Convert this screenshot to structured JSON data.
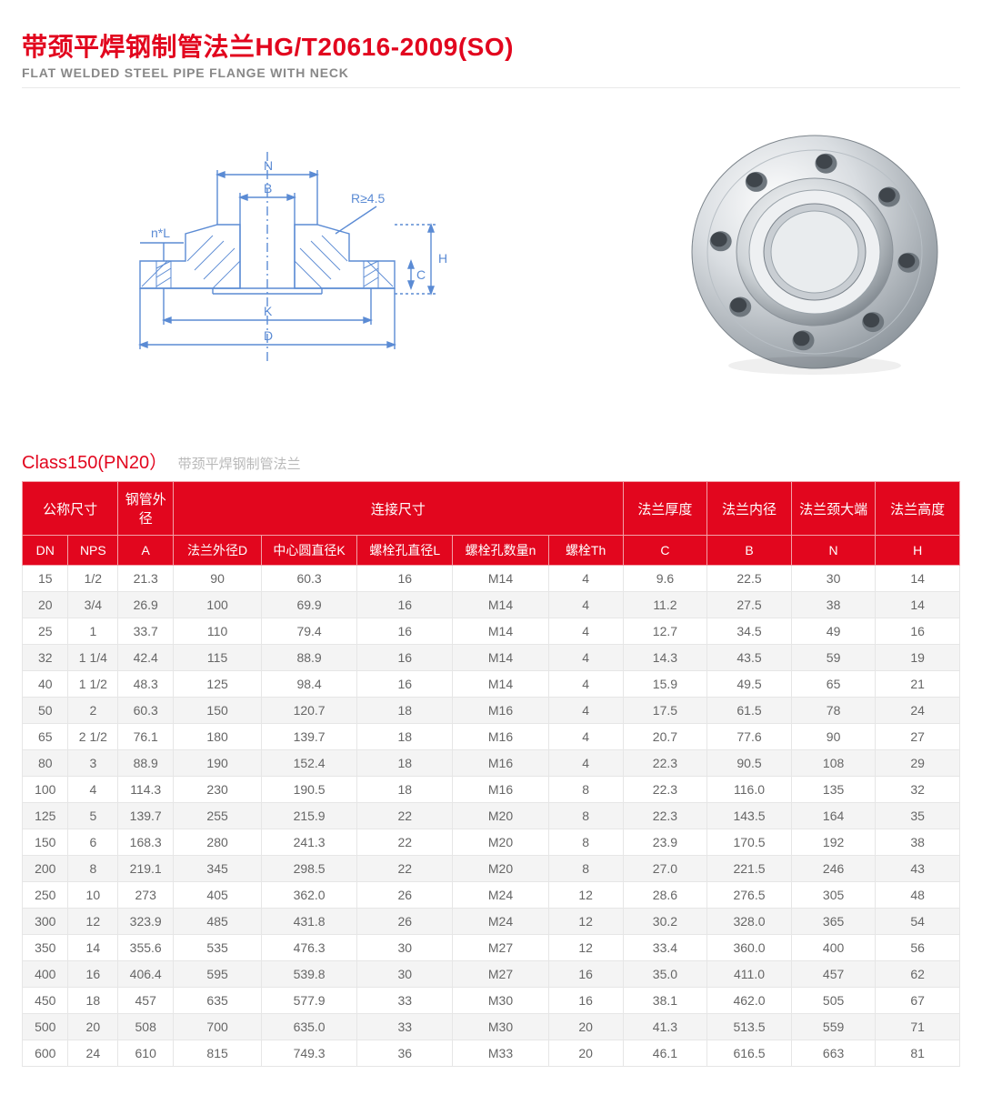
{
  "header": {
    "title_cn": "带颈平焊钢制管法兰HG/T20616-2009(SO)",
    "title_en": "FLAT WELDED STEEL PIPE FLANGE WITH NECK",
    "title_color": "#e2061e",
    "subtitle_color": "#888888"
  },
  "diagram": {
    "labels": {
      "N": "N",
      "B": "B",
      "R": "R≥4.5",
      "nL": "n*L",
      "H": "H",
      "C": "C",
      "K": "K",
      "D": "D"
    },
    "stroke_color": "#5b8bd4",
    "hatch_color": "#5b8bd4",
    "text_color": "#5b8bd4"
  },
  "photo": {
    "description": "metallic 8-bolt slip-on flange",
    "metal_light": "#f5f6f7",
    "metal_mid": "#cfd4d8",
    "metal_dark": "#9aa3aa",
    "bolt_count": 8
  },
  "section": {
    "title": "Class150(PN20）",
    "subtitle": "带颈平焊钢制管法兰"
  },
  "table": {
    "header_bg": "#e2061e",
    "header_fg": "#ffffff",
    "border_color": "#e6e6e6",
    "zebra_bg": "#f4f4f4",
    "groups": {
      "nominal": "公称尺寸",
      "pipe_od": "钢管外径",
      "conn": "连接尺寸",
      "thick": "法兰厚度",
      "inner": "法兰内径",
      "neck": "法兰颈大端",
      "height": "法兰高度"
    },
    "cols": {
      "DN": "DN",
      "NPS": "NPS",
      "A": "A",
      "D": "法兰外径D",
      "K": "中心圆直径K",
      "L": "螺栓孔直径L",
      "n": "螺栓孔数量n",
      "Th": "螺栓Th",
      "C": "C",
      "B": "B",
      "N": "N",
      "H": "H"
    },
    "rows": [
      {
        "DN": "15",
        "NPS": "1/2",
        "A": "21.3",
        "D": "90",
        "K": "60.3",
        "L": "16",
        "n": "M14",
        "Th": "4",
        "C": "9.6",
        "B": "22.5",
        "N": "30",
        "H": "14"
      },
      {
        "DN": "20",
        "NPS": "3/4",
        "A": "26.9",
        "D": "100",
        "K": "69.9",
        "L": "16",
        "n": "M14",
        "Th": "4",
        "C": "11.2",
        "B": "27.5",
        "N": "38",
        "H": "14"
      },
      {
        "DN": "25",
        "NPS": "1",
        "A": "33.7",
        "D": "110",
        "K": "79.4",
        "L": "16",
        "n": "M14",
        "Th": "4",
        "C": "12.7",
        "B": "34.5",
        "N": "49",
        "H": "16"
      },
      {
        "DN": "32",
        "NPS": "1 1/4",
        "A": "42.4",
        "D": "115",
        "K": "88.9",
        "L": "16",
        "n": "M14",
        "Th": "4",
        "C": "14.3",
        "B": "43.5",
        "N": "59",
        "H": "19"
      },
      {
        "DN": "40",
        "NPS": "1 1/2",
        "A": "48.3",
        "D": "125",
        "K": "98.4",
        "L": "16",
        "n": "M14",
        "Th": "4",
        "C": "15.9",
        "B": "49.5",
        "N": "65",
        "H": "21"
      },
      {
        "DN": "50",
        "NPS": "2",
        "A": "60.3",
        "D": "150",
        "K": "120.7",
        "L": "18",
        "n": "M16",
        "Th": "4",
        "C": "17.5",
        "B": "61.5",
        "N": "78",
        "H": "24"
      },
      {
        "DN": "65",
        "NPS": "2 1/2",
        "A": "76.1",
        "D": "180",
        "K": "139.7",
        "L": "18",
        "n": "M16",
        "Th": "4",
        "C": "20.7",
        "B": "77.6",
        "N": "90",
        "H": "27"
      },
      {
        "DN": "80",
        "NPS": "3",
        "A": "88.9",
        "D": "190",
        "K": "152.4",
        "L": "18",
        "n": "M16",
        "Th": "4",
        "C": "22.3",
        "B": "90.5",
        "N": "108",
        "H": "29"
      },
      {
        "DN": "100",
        "NPS": "4",
        "A": "114.3",
        "D": "230",
        "K": "190.5",
        "L": "18",
        "n": "M16",
        "Th": "8",
        "C": "22.3",
        "B": "116.0",
        "N": "135",
        "H": "32"
      },
      {
        "DN": "125",
        "NPS": "5",
        "A": "139.7",
        "D": "255",
        "K": "215.9",
        "L": "22",
        "n": "M20",
        "Th": "8",
        "C": "22.3",
        "B": "143.5",
        "N": "164",
        "H": "35"
      },
      {
        "DN": "150",
        "NPS": "6",
        "A": "168.3",
        "D": "280",
        "K": "241.3",
        "L": "22",
        "n": "M20",
        "Th": "8",
        "C": "23.9",
        "B": "170.5",
        "N": "192",
        "H": "38"
      },
      {
        "DN": "200",
        "NPS": "8",
        "A": "219.1",
        "D": "345",
        "K": "298.5",
        "L": "22",
        "n": "M20",
        "Th": "8",
        "C": "27.0",
        "B": "221.5",
        "N": "246",
        "H": "43"
      },
      {
        "DN": "250",
        "NPS": "10",
        "A": "273",
        "D": "405",
        "K": "362.0",
        "L": "26",
        "n": "M24",
        "Th": "12",
        "C": "28.6",
        "B": "276.5",
        "N": "305",
        "H": "48"
      },
      {
        "DN": "300",
        "NPS": "12",
        "A": "323.9",
        "D": "485",
        "K": "431.8",
        "L": "26",
        "n": "M24",
        "Th": "12",
        "C": "30.2",
        "B": "328.0",
        "N": "365",
        "H": "54"
      },
      {
        "DN": "350",
        "NPS": "14",
        "A": "355.6",
        "D": "535",
        "K": "476.3",
        "L": "30",
        "n": "M27",
        "Th": "12",
        "C": "33.4",
        "B": "360.0",
        "N": "400",
        "H": "56"
      },
      {
        "DN": "400",
        "NPS": "16",
        "A": "406.4",
        "D": "595",
        "K": "539.8",
        "L": "30",
        "n": "M27",
        "Th": "16",
        "C": "35.0",
        "B": "411.0",
        "N": "457",
        "H": "62"
      },
      {
        "DN": "450",
        "NPS": "18",
        "A": "457",
        "D": "635",
        "K": "577.9",
        "L": "33",
        "n": "M30",
        "Th": "16",
        "C": "38.1",
        "B": "462.0",
        "N": "505",
        "H": "67"
      },
      {
        "DN": "500",
        "NPS": "20",
        "A": "508",
        "D": "700",
        "K": "635.0",
        "L": "33",
        "n": "M30",
        "Th": "20",
        "C": "41.3",
        "B": "513.5",
        "N": "559",
        "H": "71"
      },
      {
        "DN": "600",
        "NPS": "24",
        "A": "610",
        "D": "815",
        "K": "749.3",
        "L": "36",
        "n": "M33",
        "Th": "20",
        "C": "46.1",
        "B": "616.5",
        "N": "663",
        "H": "81"
      }
    ]
  }
}
